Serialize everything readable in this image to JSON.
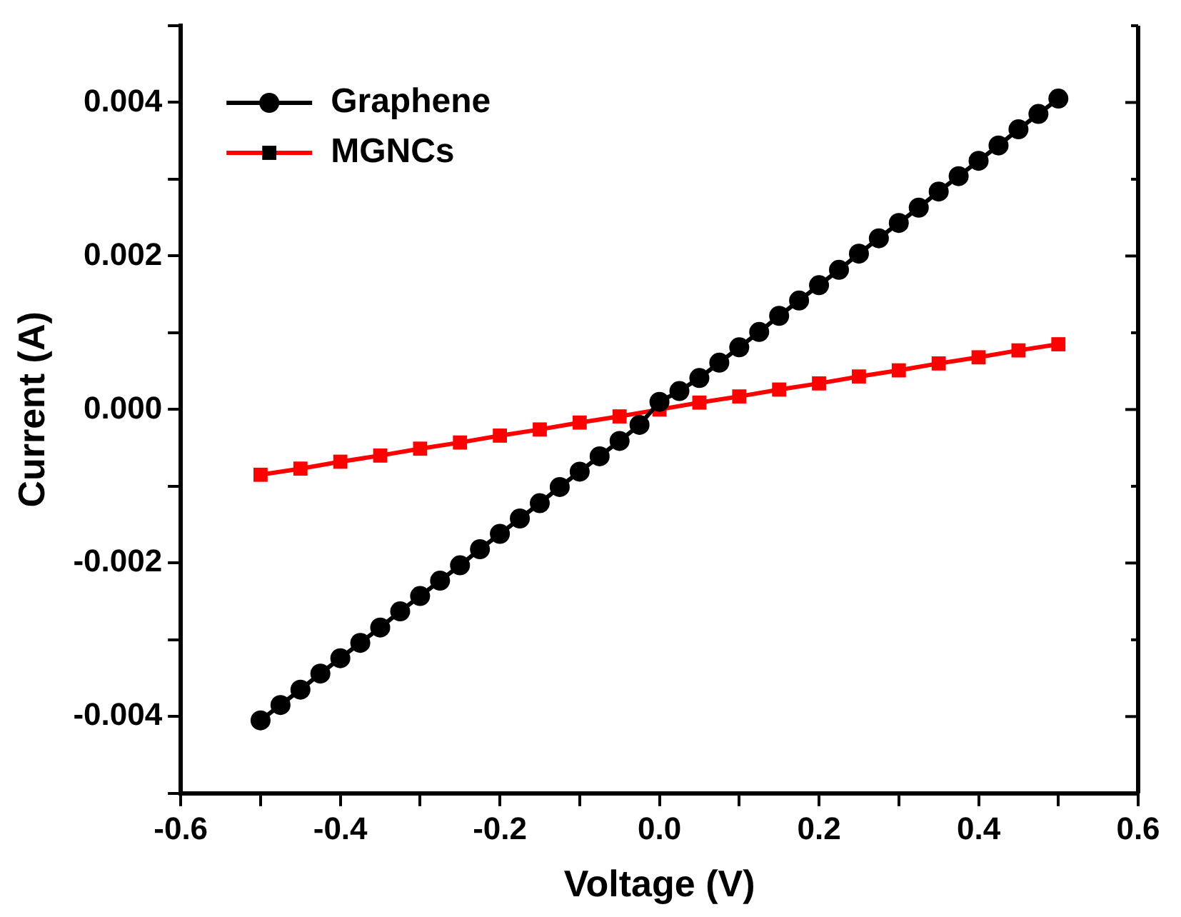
{
  "chart_data": {
    "type": "line",
    "xlabel": "Voltage (V)",
    "ylabel": "Current (A)",
    "xlim": [
      -0.6,
      0.6
    ],
    "ylim": [
      -0.005,
      0.005
    ],
    "xticks": [
      {
        "value": -0.6,
        "label": "-0.6"
      },
      {
        "value": -0.5,
        "label": null
      },
      {
        "value": -0.4,
        "label": "-0.4"
      },
      {
        "value": -0.3,
        "label": null
      },
      {
        "value": -0.2,
        "label": "-0.2"
      },
      {
        "value": -0.1,
        "label": null
      },
      {
        "value": 0,
        "label": "0.0"
      },
      {
        "value": 0.1,
        "label": null
      },
      {
        "value": 0.2,
        "label": "0.2"
      },
      {
        "value": 0.3,
        "label": null
      },
      {
        "value": 0.4,
        "label": "0.4"
      },
      {
        "value": 0.5,
        "label": null
      },
      {
        "value": 0.6,
        "label": "0.6"
      }
    ],
    "yticks": [
      {
        "value": -0.005,
        "label": null
      },
      {
        "value": -0.004,
        "label": "-0.004"
      },
      {
        "value": -0.003,
        "label": null
      },
      {
        "value": -0.002,
        "label": "-0.002"
      },
      {
        "value": -0.001,
        "label": null
      },
      {
        "value": 0,
        "label": "0.000"
      },
      {
        "value": 0.001,
        "label": null
      },
      {
        "value": 0.002,
        "label": "0.002"
      },
      {
        "value": 0.003,
        "label": null
      },
      {
        "value": 0.004,
        "label": "0.004"
      },
      {
        "value": 0.005,
        "label": null
      }
    ],
    "grid": false,
    "legend": "top left",
    "line_style": "solid",
    "series": [
      {
        "name": "Graphene",
        "color": "#000000",
        "marker": "circle",
        "x": [
          -0.5,
          -0.475,
          -0.45,
          -0.425,
          -0.4,
          -0.375,
          -0.35,
          -0.325,
          -0.3,
          -0.275,
          -0.25,
          -0.225,
          -0.2,
          -0.175,
          -0.15,
          -0.125,
          -0.1,
          -0.075,
          -0.05,
          -0.025,
          0,
          0.025,
          0.05,
          0.075,
          0.1,
          0.125,
          0.15,
          0.175,
          0.2,
          0.225,
          0.25,
          0.275,
          0.3,
          0.325,
          0.35,
          0.375,
          0.4,
          0.425,
          0.45,
          0.475,
          0.5
        ],
        "values": [
          -0.00405,
          -0.00385,
          -0.00365,
          -0.00344,
          -0.00324,
          -0.00304,
          -0.00284,
          -0.00263,
          -0.00243,
          -0.00223,
          -0.00203,
          -0.00182,
          -0.00162,
          -0.00142,
          -0.00122,
          -0.00101,
          -0.00081,
          -0.00061,
          -0.00041,
          -0.0002,
          0.0001,
          0.00024,
          0.00041,
          0.00061,
          0.00081,
          0.00101,
          0.00122,
          0.00142,
          0.00162,
          0.00182,
          0.00203,
          0.00223,
          0.00243,
          0.00263,
          0.00284,
          0.00304,
          0.00324,
          0.00344,
          0.00365,
          0.00385,
          0.00405
        ]
      },
      {
        "name": "MGNCs",
        "color": "#ff0000",
        "marker": "square",
        "x": [
          -0.5,
          -0.45,
          -0.4,
          -0.35,
          -0.3,
          -0.25,
          -0.2,
          -0.15,
          -0.1,
          -0.05,
          0,
          0.05,
          0.1,
          0.15,
          0.2,
          0.25,
          0.3,
          0.35,
          0.4,
          0.45,
          0.5
        ],
        "values": [
          -0.00085,
          -0.00077,
          -0.00068,
          -0.0006,
          -0.00051,
          -0.00043,
          -0.00034,
          -0.00026,
          -0.00017,
          -9e-05,
          0,
          9e-05,
          0.00017,
          0.00026,
          0.00034,
          0.00043,
          0.00051,
          0.0006,
          0.00068,
          0.00077,
          0.00085
        ]
      }
    ]
  }
}
